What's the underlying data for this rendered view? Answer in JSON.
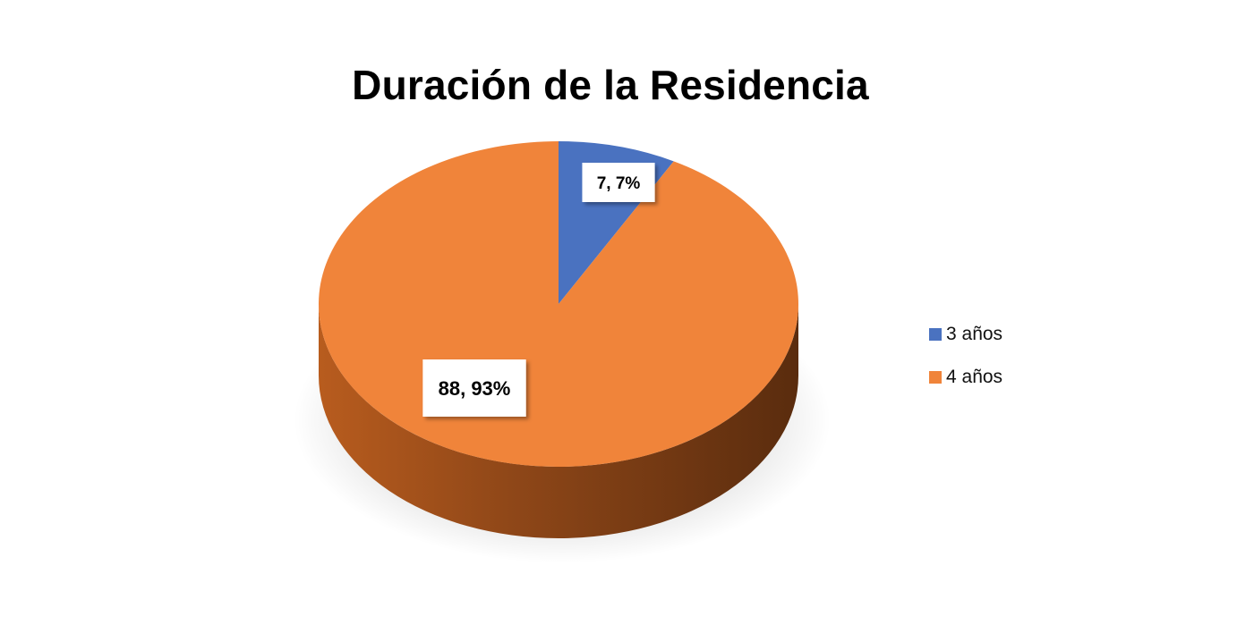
{
  "chart_data": {
    "type": "pie",
    "title": "Duración de la Residencia",
    "slices": [
      {
        "name": "3 años",
        "value": 7.7,
        "label": "7, 7%",
        "color": "#4a72c0"
      },
      {
        "name": "4 años",
        "value": 88.93,
        "label": "88, 93%",
        "color": "#f0843a"
      }
    ],
    "legend": {
      "position": "right"
    }
  }
}
